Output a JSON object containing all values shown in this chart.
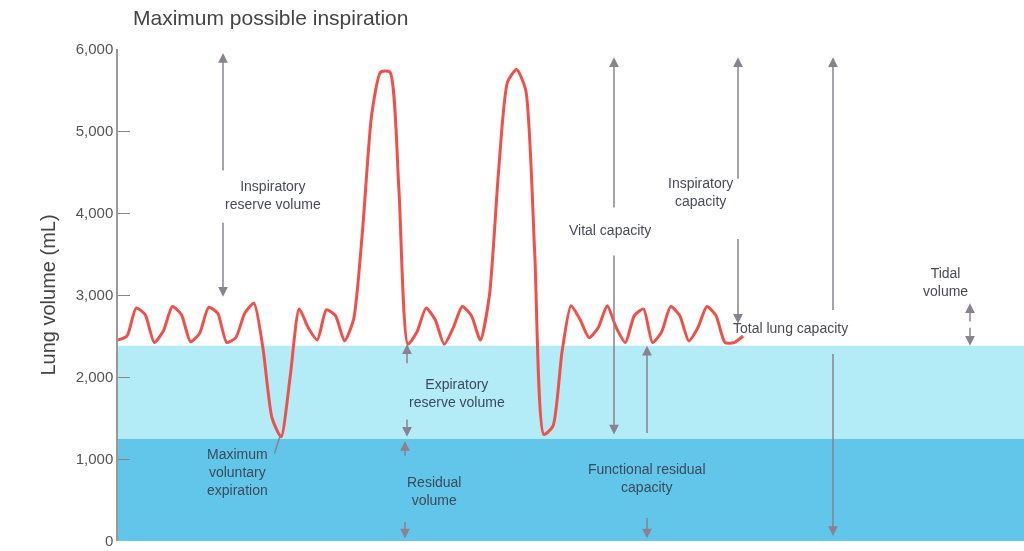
{
  "chart_data": {
    "type": "line",
    "title": "Maximum possible inspiration",
    "ylabel": "Lung volume (mL)",
    "categories": [
      null,
      null,
      null,
      null,
      null,
      null,
      null,
      null,
      null,
      null,
      null,
      null,
      null,
      null,
      null,
      null,
      null,
      null,
      null,
      null,
      null,
      null,
      null,
      null,
      null,
      null,
      null,
      null,
      null,
      null,
      null,
      null,
      null,
      null,
      null,
      null,
      null,
      null,
      null,
      null,
      null,
      null,
      null,
      null,
      null,
      null,
      null,
      null,
      null,
      null,
      null,
      null,
      null,
      null,
      null,
      null,
      null,
      null,
      null,
      null,
      null,
      null,
      null,
      null,
      null,
      null,
      null,
      null,
      null,
      null,
      null,
      null,
      null,
      null,
      null,
      null,
      null,
      null,
      null,
      null,
      null,
      null,
      null,
      null,
      null,
      null,
      null,
      null,
      null,
      null,
      null,
      null,
      null,
      null,
      null,
      null,
      null,
      null,
      null,
      null,
      null
    ],
    "series": [
      {
        "color": "#f0504a",
        "values": [
          2450,
          2500,
          2840,
          2760,
          2420,
          2560,
          2860,
          2760,
          2430,
          2530,
          2850,
          2780,
          2420,
          2480,
          2780,
          2900,
          2350,
          1500,
          1270,
          2000,
          2830,
          2600,
          2450,
          2820,
          2750,
          2440,
          2700,
          3800,
          5200,
          5720,
          5720,
          4300,
          2400,
          2550,
          2840,
          2700,
          2400,
          2600,
          2860,
          2750,
          2450,
          3000,
          4500,
          5600,
          5750,
          5500,
          3500,
          1300,
          1400,
          2300,
          2870,
          2700,
          2480,
          2600,
          2870,
          2600,
          2420,
          2750,
          2830,
          2420,
          2550,
          2860,
          2750,
          2440,
          2600,
          2860,
          2750,
          2420,
          2420,
          2500,
          null,
          null,
          null,
          null,
          null,
          null,
          null,
          null,
          null,
          null,
          null,
          null,
          null,
          null,
          null,
          null,
          null,
          null,
          null,
          null,
          null,
          null,
          null,
          null,
          null,
          null,
          null,
          null,
          null,
          null,
          null
        ]
      }
    ],
    "ylim": [
      0,
      6000
    ],
    "yticks": [
      {
        "value": 0,
        "label": "0"
      },
      {
        "value": 1000,
        "label": "1,000"
      },
      {
        "value": 2000,
        "label": "2,000"
      },
      {
        "value": 3000,
        "label": "3,000"
      },
      {
        "value": 4000,
        "label": "4,000"
      },
      {
        "value": 5000,
        "label": "5,000"
      },
      {
        "value": 6000,
        "label": "6,000"
      }
    ],
    "bands": [
      {
        "axis": "y",
        "from": 0,
        "to": 1250,
        "color": "#62c6ea"
      },
      {
        "axis": "y",
        "from": 1250,
        "to": 2380,
        "color": "#b3ebf7"
      }
    ],
    "annotations": [
      "Inspiratory\nreserve volume",
      "Expiratory\nreserve volume",
      "Maximum\nvoluntary\nexpiration",
      "Residual\nvolume",
      "Vital capacity",
      "Inspiratory\ncapacity",
      "Functional residual\ncapacity",
      "Total lung capacity",
      "Tidal\nvolume"
    ],
    "grid": false,
    "tick_labels": "y"
  }
}
